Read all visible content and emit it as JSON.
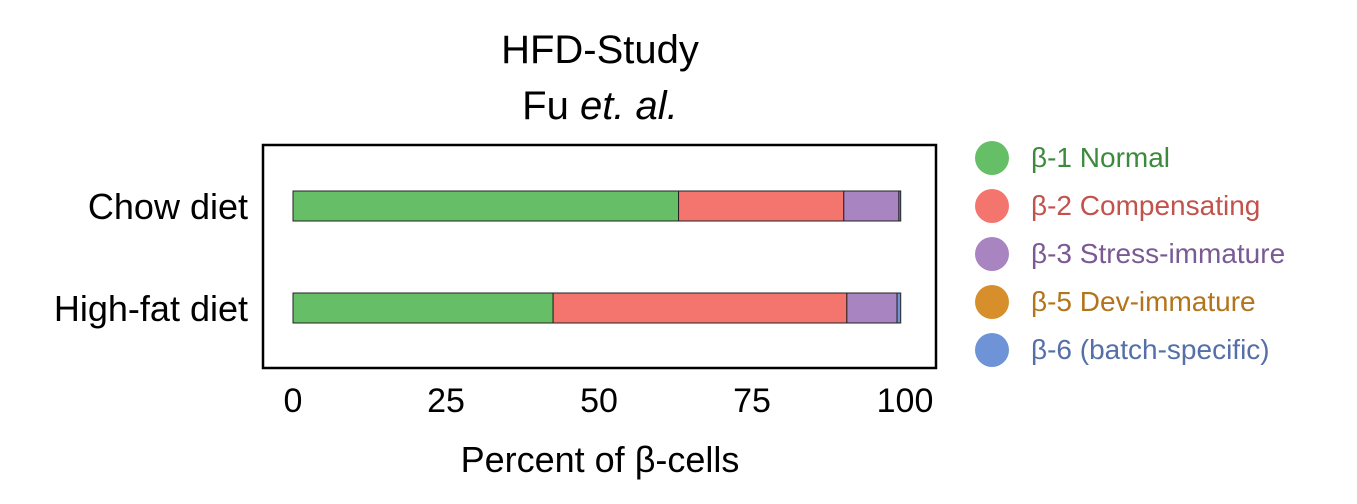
{
  "chart_data": {
    "type": "bar",
    "orientation": "horizontal",
    "stacked": true,
    "title_line1": "HFD-Study",
    "title_line2_plain": "Fu ",
    "title_line2_italic": "et. al.",
    "xlabel": "Percent of β-cells",
    "ylabel": "",
    "xlim": [
      0,
      100
    ],
    "xticks": [
      "0",
      "25",
      "50",
      "75",
      "100"
    ],
    "categories": [
      "Chow diet",
      "High-fat diet"
    ],
    "series": [
      {
        "name": "β-1 Normal",
        "color": "#66bf66",
        "text_color": "#3d8a3d",
        "values": [
          63.0,
          42.5
        ]
      },
      {
        "name": "β-2 Compensating",
        "color": "#f4746e",
        "text_color": "#c2524c",
        "values": [
          27.0,
          48.0
        ]
      },
      {
        "name": "β-3 Stress-immature",
        "color": "#a884c0",
        "text_color": "#7a5a94",
        "values": [
          9.0,
          8.2
        ]
      },
      {
        "name": "β-5 Dev-immature",
        "color": "#d68f2b",
        "text_color": "#b3741c",
        "values": [
          0.0,
          0.0
        ]
      },
      {
        "name": "β-6 (batch-specific)",
        "color": "#6e93d6",
        "text_color": "#5570a8",
        "values": [
          0.3,
          0.6
        ]
      }
    ],
    "grid": false,
    "legend_position": "right"
  }
}
